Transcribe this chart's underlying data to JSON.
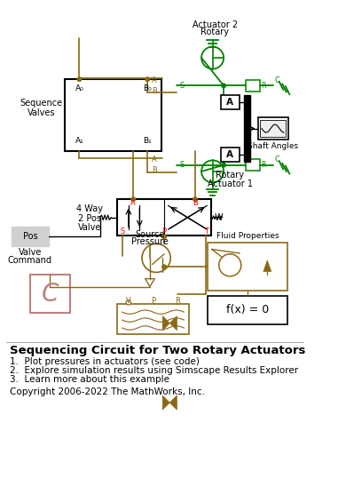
{
  "title": "Sequencing Circuit for Two Rotary Actuators",
  "bullet1": "1.  Plot pressures in actuators (see code)",
  "bullet2": "2.  Explore simulation results using Simscape Results Explorer",
  "bullet3": "3.  Learn more about this example",
  "copyright": "Copyright 2006-2022 The MathWorks, Inc.",
  "bg_color": "#ffffff",
  "gold": "#8B6914",
  "green": "#008000",
  "dark": "#000000",
  "red": "#ff0000",
  "pink": "#C08080",
  "light_gray": "#d0d0d0",
  "fig_width": 3.9,
  "fig_height": 5.39,
  "dpi": 100
}
